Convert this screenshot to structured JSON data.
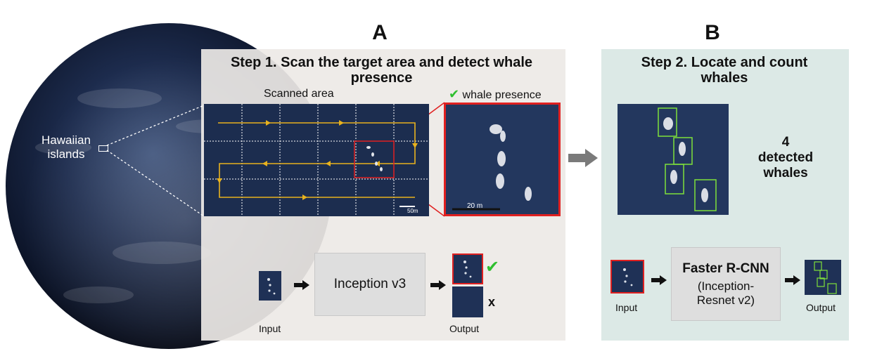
{
  "globe": {
    "label": "Hawaiian\nislands"
  },
  "panel_a": {
    "letter": "A",
    "title": "Step 1. Scan the target area and detect whale presence",
    "scanned_label": "Scanned area",
    "presence_label": "whale presence",
    "scale_small": "50m",
    "scale_zoom": "20 m",
    "model": "Inception v3",
    "input_label": "Input",
    "output_label": "Output",
    "reject_mark": "x"
  },
  "panel_b": {
    "letter": "B",
    "title": "Step 2. Locate and count whales",
    "count_text": "4\ndetected\nwhales",
    "model_line1": "Faster R-CNN",
    "model_line2": "(Inception-\nResnet v2)",
    "input_label": "Input",
    "output_label": "Output"
  },
  "colors": {
    "panel_a_bg": "#ede9e6",
    "panel_b_bg": "#dce9e6",
    "scan_path": "#e8b21e",
    "highlight_red": "#e02020",
    "detect_green": "#7ee03a",
    "check_green": "#2fbf2f"
  },
  "icons": [
    "check-icon",
    "arrow-right-icon",
    "scan-direction-arrow-icon"
  ]
}
